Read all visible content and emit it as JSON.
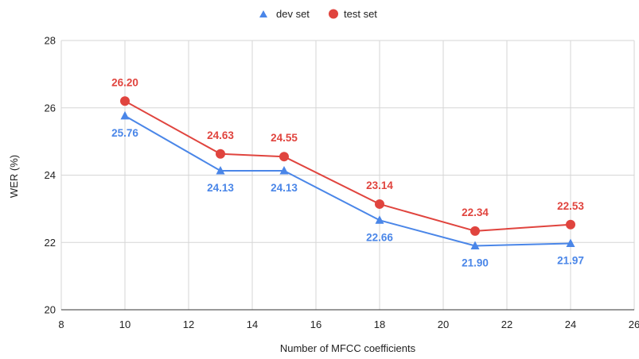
{
  "chart_data": {
    "type": "line",
    "title": "",
    "xlabel": "Number of MFCC coefficients",
    "ylabel": "WER (%)",
    "xlim": [
      8,
      26
    ],
    "ylim": [
      20,
      28
    ],
    "xticks": [
      "8",
      "10",
      "12",
      "14",
      "16",
      "18",
      "20",
      "22",
      "24",
      "26"
    ],
    "yticks": [
      "20",
      "22",
      "24",
      "26",
      "28"
    ],
    "grid": true,
    "legend_position": "top-center",
    "x": [
      10,
      13,
      15,
      18,
      21,
      24
    ],
    "series": [
      {
        "name": "dev set",
        "marker": "triangle",
        "color": "#4a86e8",
        "values": [
          25.76,
          24.13,
          24.13,
          22.66,
          21.9,
          21.97
        ],
        "labels": [
          "25.76",
          "24.13",
          "24.13",
          "22.66",
          "21.90",
          "21.97"
        ],
        "label_position": "below"
      },
      {
        "name": "test set",
        "marker": "circle",
        "color": "#e0443e",
        "values": [
          26.2,
          24.63,
          24.55,
          23.14,
          22.34,
          22.53
        ],
        "labels": [
          "26.20",
          "24.63",
          "24.55",
          "23.14",
          "22.34",
          "22.53"
        ],
        "label_position": "above"
      }
    ]
  }
}
